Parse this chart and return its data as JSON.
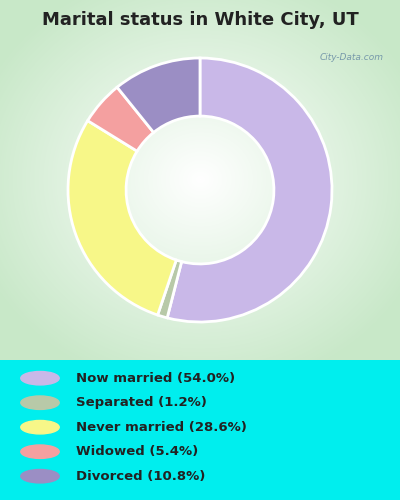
{
  "title": "Marital status in White City, UT",
  "slices": [
    {
      "label": "Now married (54.0%)",
      "value": 54.0,
      "color": "#c9b8e8"
    },
    {
      "label": "Separated (1.2%)",
      "value": 1.2,
      "color": "#b8c9a8"
    },
    {
      "label": "Never married (28.6%)",
      "value": 28.6,
      "color": "#f7f788"
    },
    {
      "label": "Widowed (5.4%)",
      "value": 5.4,
      "color": "#f4a0a0"
    },
    {
      "label": "Divorced (10.8%)",
      "value": 10.8,
      "color": "#9b8ec4"
    }
  ],
  "legend_colors": [
    "#c9b8e8",
    "#b8c9a8",
    "#f7f788",
    "#f4a0a0",
    "#9b8ec4"
  ],
  "legend_labels": [
    "Now married (54.0%)",
    "Separated (1.2%)",
    "Never married (28.6%)",
    "Widowed (5.4%)",
    "Divorced (10.8%)"
  ],
  "bg_cyan": "#00eeee",
  "title_color": "#222222",
  "title_fontsize": 13,
  "start_angle": 90,
  "watermark": "City-Data.com",
  "chart_bg_corner": "#c8e8c8",
  "chart_bg_center": "#f0f8f0"
}
